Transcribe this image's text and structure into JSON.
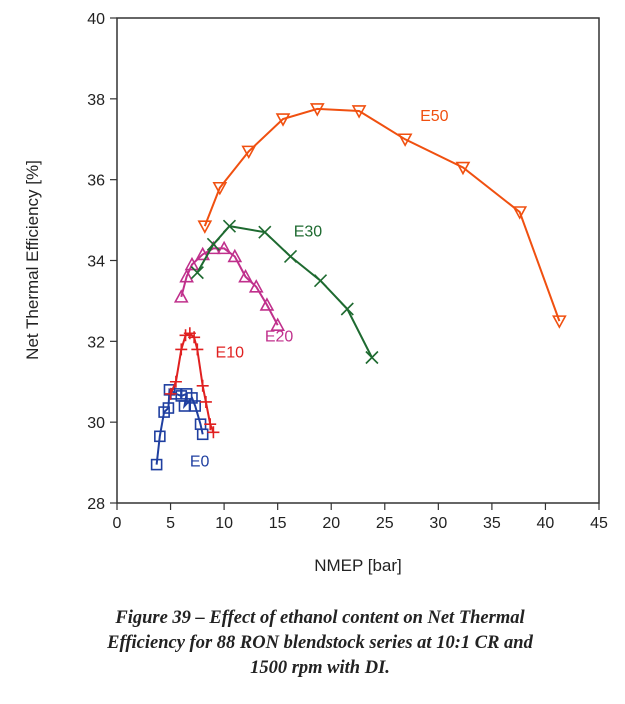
{
  "chart_data": {
    "type": "line",
    "title": "",
    "xlabel": "NMEP [bar]",
    "ylabel": "Net Thermal Efficiency [%]",
    "xlim": [
      0,
      45
    ],
    "ylim": [
      28,
      40
    ],
    "xticks": [
      0,
      5,
      10,
      15,
      20,
      25,
      30,
      35,
      40,
      45
    ],
    "yticks": [
      28,
      30,
      32,
      34,
      36,
      38,
      40
    ],
    "grid": false,
    "series": [
      {
        "name": "E0",
        "color": "#1f3fa0",
        "marker": "square",
        "points": [
          [
            3.7,
            28.95
          ],
          [
            4.0,
            29.65
          ],
          [
            4.4,
            30.25
          ],
          [
            4.8,
            30.35
          ],
          [
            4.9,
            30.8
          ],
          [
            5.5,
            30.7
          ],
          [
            6.0,
            30.65
          ],
          [
            6.5,
            30.7
          ],
          [
            6.3,
            30.4
          ],
          [
            7.0,
            30.6
          ],
          [
            7.3,
            30.4
          ],
          [
            7.8,
            29.95
          ],
          [
            8.0,
            29.7
          ]
        ]
      },
      {
        "name": "E10",
        "color": "#e02020",
        "marker": "plus",
        "points": [
          [
            5.0,
            30.7
          ],
          [
            5.5,
            31.0
          ],
          [
            6.0,
            31.8
          ],
          [
            6.4,
            32.15
          ],
          [
            6.8,
            32.2
          ],
          [
            7.2,
            32.1
          ],
          [
            7.5,
            31.8
          ],
          [
            8.0,
            30.9
          ],
          [
            8.3,
            30.5
          ],
          [
            8.7,
            29.95
          ],
          [
            9.0,
            29.75
          ]
        ]
      },
      {
        "name": "E20",
        "color": "#c0308c",
        "marker": "triangle-up",
        "points": [
          [
            6.0,
            33.1
          ],
          [
            6.5,
            33.6
          ],
          [
            7.0,
            33.9
          ],
          [
            8.0,
            34.15
          ],
          [
            9.0,
            34.3
          ],
          [
            10.0,
            34.3
          ],
          [
            11.0,
            34.1
          ],
          [
            12.0,
            33.6
          ],
          [
            13.0,
            33.35
          ],
          [
            14.0,
            32.9
          ],
          [
            15.0,
            32.4
          ]
        ]
      },
      {
        "name": "E30",
        "color": "#1e6a30",
        "marker": "x",
        "points": [
          [
            7.5,
            33.7
          ],
          [
            9.0,
            34.4
          ],
          [
            10.5,
            34.85
          ],
          [
            13.8,
            34.7
          ],
          [
            16.2,
            34.1
          ],
          [
            19.0,
            33.5
          ],
          [
            21.5,
            32.8
          ],
          [
            23.8,
            31.6
          ]
        ]
      },
      {
        "name": "E50",
        "color": "#f05010",
        "marker": "triangle-down",
        "points": [
          [
            8.2,
            34.85
          ],
          [
            9.6,
            35.8
          ],
          [
            12.3,
            36.7
          ],
          [
            15.5,
            37.5
          ],
          [
            18.7,
            37.75
          ],
          [
            22.6,
            37.7
          ],
          [
            26.9,
            37.0
          ],
          [
            32.3,
            36.3
          ],
          [
            37.6,
            35.2
          ],
          [
            41.3,
            32.5
          ]
        ]
      }
    ],
    "annotations": [
      {
        "text": "E0",
        "x": 6.8,
        "y": 28.9,
        "color": "#1f3fa0"
      },
      {
        "text": "E10",
        "x": 9.2,
        "y": 31.6,
        "color": "#e02020"
      },
      {
        "text": "E20",
        "x": 13.8,
        "y": 32.0,
        "color": "#c0308c"
      },
      {
        "text": "E30",
        "x": 16.5,
        "y": 34.6,
        "color": "#1e6a30"
      },
      {
        "text": "E50",
        "x": 28.3,
        "y": 37.45,
        "color": "#f05010"
      }
    ]
  },
  "caption": {
    "line1": "Figure 39 – Effect of ethanol content on Net Thermal",
    "line2": "Efficiency for 88 RON blendstock series at 10:1 CR and",
    "line3": "1500 rpm with DI."
  }
}
